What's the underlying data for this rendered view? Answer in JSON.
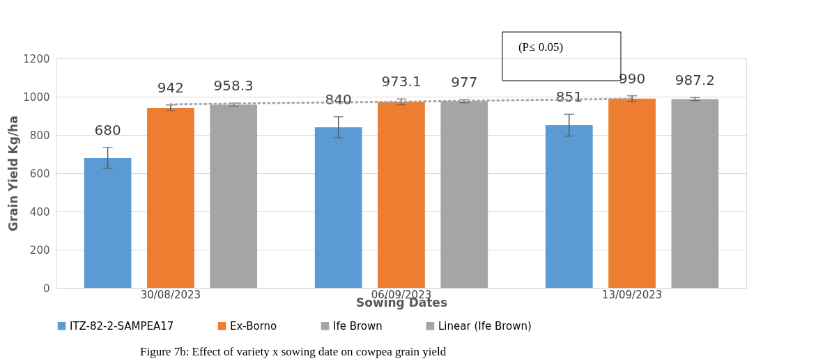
{
  "chart_data": {
    "type": "bar",
    "xlabel": "Sowing Dates",
    "ylabel": "Grain Yield Kg/ha",
    "categories": [
      "30/08/2023",
      "06/09/2023",
      "13/09/2023"
    ],
    "series": [
      {
        "name": "ITZ-82-2-SAMPEA17",
        "color": "#5b9bd5",
        "values": [
          680,
          840,
          851
        ],
        "errors": [
          55,
          55,
          57
        ],
        "value_labels": [
          "680",
          "840",
          "851"
        ]
      },
      {
        "name": "Ex-Borno",
        "color": "#ed7d31",
        "values": [
          942,
          973.1,
          990
        ],
        "errors": [
          15,
          15,
          15
        ],
        "value_labels": [
          "942",
          "973.1",
          "990"
        ]
      },
      {
        "name": "Ife Brown",
        "color": "#a5a5a5",
        "values": [
          958.3,
          977,
          987.2
        ],
        "errors": [
          8,
          8,
          8
        ],
        "value_labels": [
          "958.3",
          "977",
          "987.2"
        ]
      },
      {
        "name": "Linear (Ife Brown)",
        "type": "line",
        "line_style": "dotted",
        "color": "#a5a5a5",
        "values": [
          960,
          974,
          989
        ]
      }
    ],
    "ylim": [
      0,
      1200
    ],
    "yticks": [
      0,
      200,
      400,
      600,
      800,
      1000,
      1200
    ],
    "grid": "y",
    "legend": "bottom",
    "annotations": [
      "(P≤ 0.05)",
      "Figure 7b: Effect of variety x sowing date on cowpea grain yield"
    ]
  }
}
